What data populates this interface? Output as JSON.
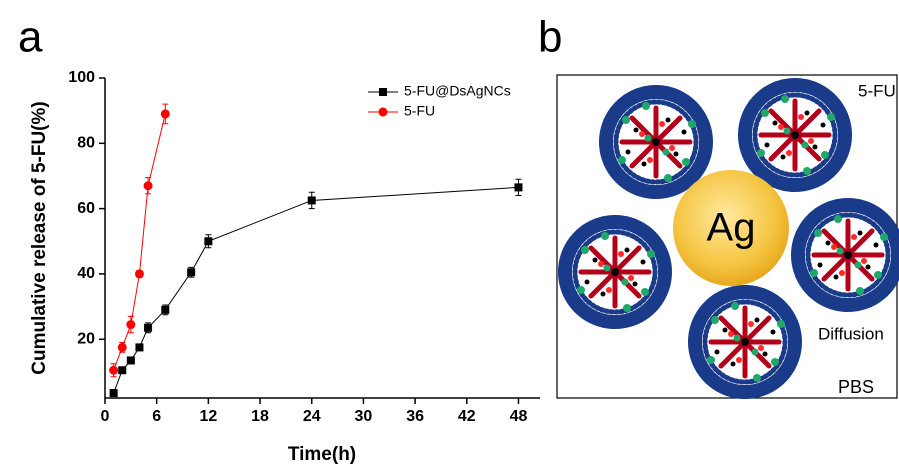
{
  "panel_labels": [
    "a",
    "b"
  ],
  "chart_data": {
    "type": "line",
    "x_label": "Time(h)",
    "y_label": "Cumulative release of 5-FU(%)",
    "xlim": [
      0,
      50.5
    ],
    "xticks": [
      0,
      6,
      12,
      18,
      24,
      30,
      36,
      42,
      48
    ],
    "ylim": [
      2,
      100
    ],
    "yticks": [
      20,
      40,
      60,
      80,
      100
    ],
    "legend": "upper right",
    "series": [
      {
        "name": "5-FU@DsAgNCs",
        "color": "#000000",
        "marker": "square",
        "x": [
          1,
          2,
          3,
          4,
          5,
          7,
          10,
          12,
          24,
          48
        ],
        "values": [
          3.5,
          10.5,
          13.5,
          17.5,
          23.5,
          29,
          40.5,
          50,
          62.5,
          66.5
        ],
        "errors": [
          1,
          1,
          1,
          1,
          1.5,
          1.5,
          1.5,
          2,
          2.5,
          2.5
        ]
      },
      {
        "name": "5-FU",
        "color": "#ff0000",
        "marker": "circle",
        "x": [
          1,
          2,
          3,
          4,
          5,
          7
        ],
        "values": [
          10.5,
          17.5,
          24.5,
          40,
          67,
          89
        ],
        "errors": [
          2,
          1.5,
          2.5,
          1,
          2.5,
          3
        ]
      }
    ]
  },
  "diagram": {
    "center_label": "Ag",
    "drug_label": "5-FU",
    "process_label": "Diffusion",
    "medium_label": "PBS"
  }
}
